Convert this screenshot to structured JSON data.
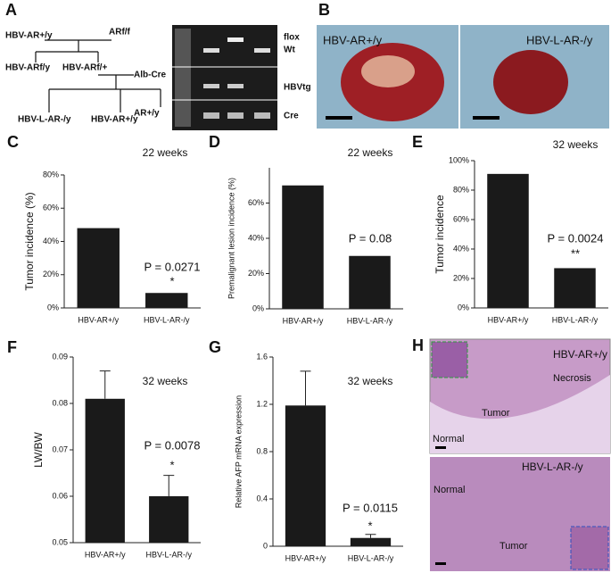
{
  "panel_a": {
    "letter": "A",
    "pedigree": [
      "HBV-AR+/y",
      "ARf/f",
      "HBV-ARf/y",
      "HBV-ARf/+",
      "Alb-Cre",
      "HBV-L-AR-/y",
      "HBV-AR+/y",
      "AR+/y"
    ],
    "gel_labels": [
      "flox",
      "Wt",
      "HBVtg",
      "Cre"
    ]
  },
  "panel_b": {
    "letter": "B",
    "labels": [
      "HBV-AR+/y",
      "HBV-L-AR-/y"
    ]
  },
  "panel_h": {
    "letter": "H",
    "labels": [
      "HBV-AR+/y",
      "Necrosis",
      "Tumor",
      "Normal",
      "HBV-L-AR-/y",
      "Normal",
      "Tumor"
    ]
  },
  "chart_data": [
    {
      "type": "bar",
      "letter": "C",
      "y_label": "Tumor incidence (%)",
      "categories": [
        "HBV-AR+/y",
        "HBV-L-AR-/y"
      ],
      "values": [
        48,
        9
      ],
      "color": "#1a1a1a",
      "ylim": [
        0,
        80
      ],
      "yticks": [
        {
          "value": 0,
          "label": "0%"
        },
        {
          "value": 20,
          "label": "20%"
        },
        {
          "value": 40,
          "label": "40%"
        },
        {
          "value": 60,
          "label": "60%"
        },
        {
          "value": 80,
          "label": "80%"
        }
      ],
      "annotations": [
        "22 weeks",
        "P = 0.0271",
        "*"
      ]
    },
    {
      "type": "bar",
      "letter": "D",
      "y_label": "Premalignant lesion incidence (%)",
      "categories": [
        "HBV-AR+/y",
        "HBV-L-AR-/y"
      ],
      "values": [
        70,
        30
      ],
      "color": "#1a1a1a",
      "ylim": [
        0,
        80
      ],
      "yticks": [
        {
          "value": 0,
          "label": "0%"
        },
        {
          "value": 20,
          "label": "20%"
        },
        {
          "value": 40,
          "label": "40%"
        },
        {
          "value": 60,
          "label": "60%"
        }
      ],
      "annotations": [
        "22 weeks",
        "P = 0.08"
      ]
    },
    {
      "type": "bar",
      "letter": "E",
      "y_label": "Tumor incidence",
      "categories": [
        "HBV-AR+/y",
        "HBV-L-AR-/y"
      ],
      "values": [
        91,
        27
      ],
      "color": "#1a1a1a",
      "ylim": [
        0,
        100
      ],
      "yticks": [
        {
          "value": 0,
          "label": "0%"
        },
        {
          "value": 20,
          "label": "20%"
        },
        {
          "value": 40,
          "label": "40%"
        },
        {
          "value": 60,
          "label": "60%"
        },
        {
          "value": 80,
          "label": "80%"
        },
        {
          "value": 100,
          "label": "100%"
        }
      ],
      "annotations": [
        "32 weeks",
        "P = 0.0024",
        "**"
      ]
    },
    {
      "type": "bar",
      "letter": "F",
      "y_label": "LW/BW",
      "categories": [
        "HBV-AR+/y",
        "HBV-L-AR-/y"
      ],
      "values": [
        0.081,
        0.06
      ],
      "errors": [
        0.006,
        0.0045
      ],
      "color": "#1a1a1a",
      "ylim": [
        0.05,
        0.09
      ],
      "yticks": [
        0.05,
        0.06,
        0.07,
        0.08,
        0.09
      ],
      "annotations": [
        "32 weeks",
        "P = 0.0078",
        "*"
      ]
    },
    {
      "type": "bar",
      "letter": "G",
      "y_label": "Relative AFP mRNA expression",
      "categories": [
        "HBV-AR+/y",
        "HBV-L-AR-/y"
      ],
      "values": [
        1.19,
        0.07
      ],
      "errors": [
        0.29,
        0.03
      ],
      "color": "#1a1a1a",
      "ylim": [
        0,
        1.6
      ],
      "yticks": [
        0,
        0.4,
        0.8,
        1.2,
        1.6
      ],
      "annotations": [
        "32 weeks",
        "P = 0.0115",
        "*"
      ]
    }
  ]
}
